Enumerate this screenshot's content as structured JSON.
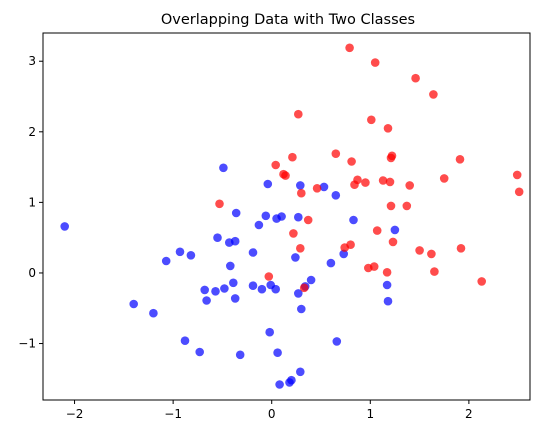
{
  "chart_data": {
    "type": "scatter",
    "title": "Overlapping Data with Two Classes",
    "xlabel": "",
    "ylabel": "",
    "xlim": [
      -2.32,
      2.62
    ],
    "ylim": [
      -1.8,
      3.4
    ],
    "xticks": [
      -2,
      -1,
      0,
      1,
      2
    ],
    "yticks": [
      -1,
      0,
      1,
      2,
      3
    ],
    "xtick_labels": [
      "−2",
      "−1",
      "0",
      "1",
      "2"
    ],
    "ytick_labels": [
      "−1",
      "0",
      "1",
      "2",
      "3"
    ],
    "grid": false,
    "legend": "none",
    "series": [
      {
        "color": "#0000ff",
        "points": [
          [
            -2.1,
            0.66
          ],
          [
            -1.4,
            -0.44
          ],
          [
            -1.2,
            -0.57
          ],
          [
            -1.07,
            0.17
          ],
          [
            -0.93,
            0.3
          ],
          [
            -0.88,
            -0.96
          ],
          [
            -0.82,
            0.25
          ],
          [
            -0.73,
            -1.12
          ],
          [
            -0.68,
            -0.24
          ],
          [
            -0.66,
            -0.39
          ],
          [
            -0.57,
            -0.26
          ],
          [
            -0.55,
            0.5
          ],
          [
            -0.49,
            1.49
          ],
          [
            -0.48,
            -0.22
          ],
          [
            -0.43,
            0.43
          ],
          [
            -0.42,
            0.1
          ],
          [
            -0.39,
            -0.14
          ],
          [
            -0.37,
            0.45
          ],
          [
            -0.37,
            -0.36
          ],
          [
            -0.36,
            0.85
          ],
          [
            -0.32,
            -1.16
          ],
          [
            -0.19,
            0.29
          ],
          [
            -0.19,
            -0.18
          ],
          [
            -0.13,
            0.68
          ],
          [
            -0.1,
            -0.23
          ],
          [
            -0.06,
            0.81
          ],
          [
            -0.04,
            1.26
          ],
          [
            -0.02,
            -0.84
          ],
          [
            -0.01,
            -0.17
          ],
          [
            0.04,
            -0.23
          ],
          [
            0.05,
            0.77
          ],
          [
            0.06,
            -1.13
          ],
          [
            0.08,
            -1.58
          ],
          [
            0.1,
            0.8
          ],
          [
            0.18,
            -1.55
          ],
          [
            0.2,
            -1.52
          ],
          [
            0.24,
            0.22
          ],
          [
            0.27,
            0.79
          ],
          [
            0.27,
            -0.29
          ],
          [
            0.29,
            -1.4
          ],
          [
            0.29,
            1.24
          ],
          [
            0.3,
            -0.51
          ],
          [
            0.34,
            -0.19
          ],
          [
            0.4,
            -0.1
          ],
          [
            0.53,
            1.22
          ],
          [
            0.6,
            0.14
          ],
          [
            0.65,
            1.1
          ],
          [
            0.66,
            -0.97
          ],
          [
            0.73,
            0.27
          ],
          [
            0.83,
            0.75
          ],
          [
            1.17,
            -0.17
          ],
          [
            1.18,
            -0.4
          ],
          [
            1.25,
            0.61
          ]
        ]
      },
      {
        "color": "#ff0000",
        "points": [
          [
            -0.53,
            0.98
          ],
          [
            -0.03,
            -0.05
          ],
          [
            0.04,
            1.53
          ],
          [
            0.12,
            1.4
          ],
          [
            0.14,
            1.38
          ],
          [
            0.21,
            1.64
          ],
          [
            0.22,
            0.56
          ],
          [
            0.27,
            2.25
          ],
          [
            0.29,
            0.35
          ],
          [
            0.3,
            1.13
          ],
          [
            0.33,
            -0.21
          ],
          [
            0.37,
            0.75
          ],
          [
            0.46,
            1.2
          ],
          [
            0.65,
            1.69
          ],
          [
            0.74,
            0.36
          ],
          [
            0.79,
            3.19
          ],
          [
            0.8,
            0.4
          ],
          [
            0.81,
            1.58
          ],
          [
            0.84,
            1.25
          ],
          [
            0.87,
            1.32
          ],
          [
            0.95,
            1.28
          ],
          [
            0.98,
            0.07
          ],
          [
            1.01,
            2.17
          ],
          [
            1.04,
            0.09
          ],
          [
            1.05,
            2.98
          ],
          [
            1.07,
            0.6
          ],
          [
            1.13,
            1.31
          ],
          [
            1.17,
            0.01
          ],
          [
            1.18,
            2.05
          ],
          [
            1.2,
            1.29
          ],
          [
            1.21,
            1.63
          ],
          [
            1.21,
            0.95
          ],
          [
            1.22,
            1.66
          ],
          [
            1.23,
            0.44
          ],
          [
            1.37,
            0.95
          ],
          [
            1.4,
            1.24
          ],
          [
            1.46,
            2.76
          ],
          [
            1.5,
            0.32
          ],
          [
            1.62,
            0.27
          ],
          [
            1.64,
            2.53
          ],
          [
            1.65,
            0.02
          ],
          [
            1.75,
            1.34
          ],
          [
            1.91,
            1.61
          ],
          [
            1.92,
            0.35
          ],
          [
            2.13,
            -0.12
          ],
          [
            2.49,
            1.39
          ],
          [
            2.51,
            1.15
          ]
        ]
      }
    ]
  }
}
